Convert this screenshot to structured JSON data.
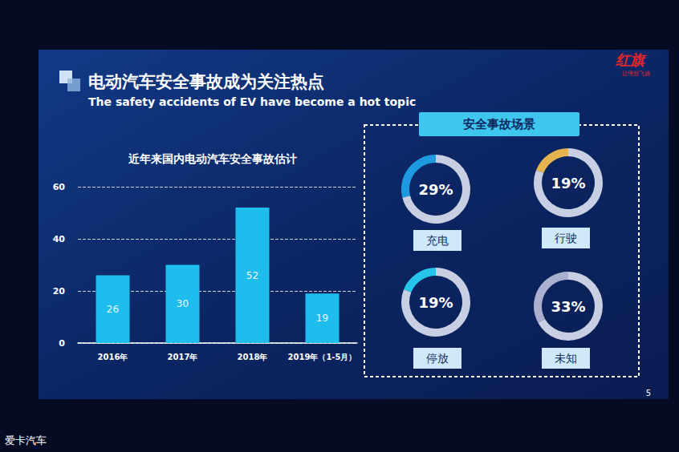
{
  "slide": {
    "title": "电动汽车安全事故成为关注热点",
    "subtitle": "The safety accidents of EV have become a hot topic",
    "logo": "红旗",
    "slogan": "让理想飞扬",
    "page": "5",
    "watermark": "爱卡汽车"
  },
  "chart_data": [
    {
      "type": "bar",
      "title": "近年来国内电动汽车安全事故估计",
      "categories": [
        "2016年",
        "2017年",
        "2018年",
        "2019年（1-5月）"
      ],
      "values": [
        26,
        30,
        52,
        19
      ],
      "color": "#1fbdee",
      "ylim": [
        0,
        60
      ],
      "yticks": [
        0,
        20,
        40,
        60
      ],
      "grid": true,
      "data_labels": true
    },
    {
      "type": "pie",
      "title": "安全事故场景",
      "categories": [
        "充电",
        "行驶",
        "停放",
        "未知"
      ],
      "values": [
        29,
        19,
        19,
        33
      ],
      "value_labels": [
        "29%",
        "19%",
        "19%",
        "33%"
      ],
      "colors": [
        "#1e9be0",
        "#e6b44f",
        "#26c4ea",
        "#aab1d0"
      ],
      "data_labels": true
    }
  ]
}
